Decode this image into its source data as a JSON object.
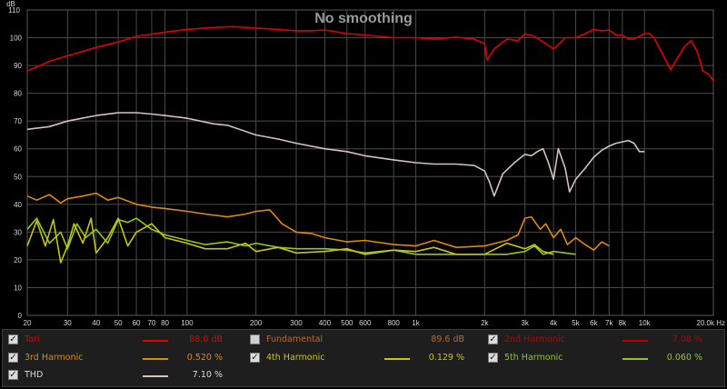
{
  "chart_data": {
    "type": "line",
    "title": "No smoothing",
    "xlabel": "",
    "ylabel": "",
    "y_unit": "dB",
    "x_unit": "Hz",
    "x_scale": "log",
    "xlim": [
      20,
      20000
    ],
    "ylim": [
      0,
      110
    ],
    "grid": true,
    "x_ticks": [
      20,
      30,
      40,
      50,
      60,
      70,
      80,
      100,
      200,
      300,
      400,
      500,
      600,
      800,
      1000,
      2000,
      3000,
      4000,
      5000,
      6000,
      7000,
      8000,
      10000,
      20000
    ],
    "x_tick_labels": [
      "20",
      "30",
      "40",
      "50",
      "60",
      "70",
      "80",
      "100",
      "200",
      "300",
      "400",
      "500",
      "600",
      "800",
      "1k",
      "2k",
      "3k",
      "4k",
      "5k",
      "6k",
      "7k",
      "8k",
      "10k",
      "20.0k Hz"
    ],
    "y_ticks": [
      0,
      10,
      20,
      30,
      40,
      50,
      60,
      70,
      80,
      90,
      100,
      110
    ],
    "series": [
      {
        "name": "Tari",
        "color": "#e00000",
        "x": [
          20,
          25,
          30,
          40,
          50,
          60,
          80,
          100,
          130,
          160,
          200,
          250,
          300,
          350,
          400,
          500,
          600,
          800,
          1000,
          1200,
          1500,
          1800,
          2000,
          2050,
          2200,
          2500,
          2800,
          3000,
          3300,
          3600,
          4000,
          4200,
          4500,
          5000,
          5500,
          6000,
          6500,
          7000,
          7500,
          8000,
          8500,
          9000,
          9500,
          10000,
          10500,
          11000,
          12000,
          13000,
          14000,
          15000,
          16000,
          17000,
          18000,
          19000,
          20000
        ],
        "values": [
          88,
          91.5,
          93.5,
          96.5,
          98.5,
          100.5,
          102,
          103,
          103.7,
          104,
          103.5,
          103,
          102.5,
          102.5,
          102.8,
          101.5,
          101,
          100,
          100,
          99.5,
          100.2,
          99.5,
          98,
          92,
          96,
          99.5,
          99,
          101.5,
          100.5,
          98.5,
          96,
          97.5,
          100,
          100,
          101.5,
          103,
          102.5,
          102.8,
          101,
          101,
          99.5,
          99.5,
          100.5,
          101.5,
          101.5,
          100,
          94,
          88.5,
          93,
          97,
          99,
          95,
          88,
          87,
          84.5
        ]
      },
      {
        "name": "THD",
        "color": "#d8c0c0",
        "x": [
          20,
          25,
          30,
          40,
          50,
          60,
          70,
          80,
          100,
          130,
          150,
          200,
          250,
          300,
          400,
          500,
          600,
          800,
          1000,
          1200,
          1500,
          1800,
          2000,
          2100,
          2200,
          2400,
          2700,
          3000,
          3200,
          3400,
          3600,
          3800,
          4000,
          4200,
          4500,
          4700,
          5000,
          5500,
          6000,
          6500,
          7000,
          7500,
          8000,
          8500,
          9000,
          9500,
          10000
        ],
        "values": [
          67,
          68,
          70,
          72,
          73,
          73,
          72.5,
          72,
          71,
          69,
          68.5,
          65,
          63.5,
          62,
          60,
          59,
          57.5,
          56,
          55,
          54.5,
          54.5,
          54,
          52,
          48,
          43,
          51,
          55,
          58,
          57.5,
          59,
          60,
          55,
          49,
          60,
          53,
          44.5,
          49,
          53,
          57,
          59.5,
          61,
          62,
          62.5,
          63,
          62,
          59,
          59
        ]
      },
      {
        "name": "3rd Harmonic",
        "color": "#e08a00",
        "x": [
          20,
          22,
          25,
          28,
          30,
          35,
          40,
          45,
          50,
          60,
          70,
          80,
          100,
          120,
          150,
          180,
          200,
          230,
          260,
          300,
          350,
          400,
          500,
          600,
          800,
          1000,
          1200,
          1500,
          2000,
          2500,
          2800,
          3000,
          3200,
          3500,
          3700,
          4000,
          4300,
          4600,
          5000,
          5500,
          6000,
          6500,
          7000
        ],
        "values": [
          43,
          41.5,
          43.5,
          40.5,
          42,
          43,
          44,
          41.5,
          42.5,
          40,
          39,
          38.5,
          37.5,
          36.5,
          35.5,
          36.5,
          37.5,
          38,
          33,
          30,
          29.5,
          28,
          26.5,
          27,
          25.5,
          25,
          27,
          24.5,
          25,
          27,
          29,
          35,
          35.5,
          31,
          33,
          28,
          31,
          25.5,
          28,
          25.5,
          23.5,
          26.5,
          25
        ]
      },
      {
        "name": "4th Harmonic",
        "color": "#c8c800",
        "x": [
          20,
          22,
          24,
          26,
          28,
          30,
          32,
          35,
          38,
          40,
          45,
          50,
          55,
          60,
          70,
          80,
          100,
          120,
          150,
          180,
          200,
          250,
          300,
          400,
          500,
          600,
          800,
          1000,
          1200,
          1500,
          2000,
          2500,
          3000,
          3300,
          3600,
          4000
        ],
        "values": [
          25,
          34,
          25,
          34.5,
          19,
          25,
          33,
          26,
          35,
          22.5,
          28,
          35,
          25,
          30,
          33,
          28,
          26,
          24,
          24,
          26,
          23,
          24.5,
          22.5,
          23,
          24,
          22,
          23.5,
          23,
          24.5,
          22,
          22,
          26,
          24,
          25.5,
          23,
          22
        ]
      },
      {
        "name": "5th Harmonic",
        "color": "#90c820",
        "x": [
          20,
          22,
          25,
          28,
          30,
          33,
          36,
          40,
          45,
          50,
          55,
          60,
          70,
          80,
          100,
          120,
          150,
          180,
          200,
          250,
          300,
          400,
          500,
          600,
          800,
          1000,
          1500,
          2000,
          2500,
          3000,
          3300,
          3600,
          4000,
          4500,
          5000
        ],
        "values": [
          31,
          35,
          26,
          30,
          24,
          33,
          28,
          31,
          26,
          34.5,
          33.5,
          35,
          31,
          29,
          27,
          25.5,
          26.5,
          25,
          26,
          24.5,
          24,
          24,
          23.5,
          22.5,
          23.5,
          22,
          22,
          22,
          22,
          23,
          25,
          22,
          23,
          22.5,
          22
        ]
      }
    ]
  },
  "legend": {
    "items": [
      {
        "name": "Tari",
        "checked": true,
        "value": "88.0 dB",
        "color": "#e00000",
        "text_color": "#e00000"
      },
      {
        "name": "Fundamental",
        "checked": false,
        "value": "89.6 dB",
        "color": "",
        "text_color": "#c86420"
      },
      {
        "name": "2nd Harmonic",
        "checked": true,
        "value": "7.08 %",
        "color": "#c00000",
        "text_color": "#c00000"
      },
      {
        "name": "3rd Harmonic",
        "checked": true,
        "value": "0.520 %",
        "color": "#e08a00",
        "text_color": "#e08a00"
      },
      {
        "name": "4th Harmonic",
        "checked": true,
        "value": "0.129 %",
        "color": "#c8c800",
        "text_color": "#c8c800"
      },
      {
        "name": "5th Harmonic",
        "checked": true,
        "value": "0.060 %",
        "color": "#90c820",
        "text_color": "#90c820"
      },
      {
        "name": "THD",
        "checked": true,
        "value": "7.10 %",
        "color": "#d8c0c0",
        "text_color": "#dcdcdc"
      }
    ]
  }
}
